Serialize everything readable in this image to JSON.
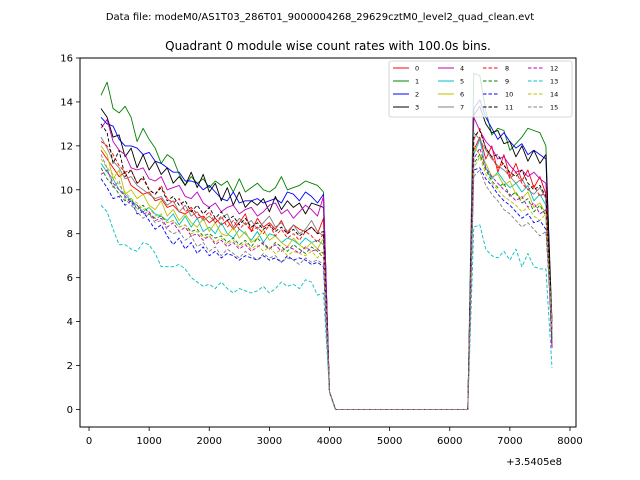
{
  "chart_data": {
    "type": "line",
    "suptitle": "Data file: modeM0/AS1T03_286T01_9000004268_29629cztM0_level2_quad_clean.evt",
    "title": "Quadrant 0 module wise count rates with 100.0s bins.",
    "xlabel": "",
    "ylabel": "",
    "x_offset_label": "+3.5405e8",
    "xlim": [
      -150,
      8100
    ],
    "ylim": [
      -0.8,
      16.0
    ],
    "xticks": [
      0,
      1000,
      2000,
      3000,
      4000,
      5000,
      6000,
      7000,
      8000
    ],
    "xtick_labels": [
      "0",
      "1000",
      "2000",
      "3000",
      "4000",
      "5000",
      "6000",
      "7000",
      "8000"
    ],
    "yticks": [
      0,
      2,
      4,
      6,
      8,
      10,
      12,
      14,
      16
    ],
    "ytick_labels": [
      "0",
      "2",
      "4",
      "6",
      "8",
      "10",
      "12",
      "14",
      "16"
    ],
    "grid": false,
    "legend_position": "top-right",
    "legend_columns": 4,
    "x": [
      200,
      300,
      400,
      500,
      600,
      700,
      800,
      900,
      1000,
      1100,
      1200,
      1300,
      1400,
      1500,
      1600,
      1700,
      1800,
      1900,
      2000,
      2100,
      2200,
      2300,
      2400,
      2500,
      2600,
      2700,
      2800,
      2900,
      3000,
      3100,
      3200,
      3300,
      3400,
      3500,
      3600,
      3700,
      3800,
      3900,
      4000,
      4100,
      4200,
      4300,
      4400,
      4500,
      4600,
      4700,
      4800,
      4900,
      5000,
      5100,
      5200,
      5300,
      5400,
      5500,
      5600,
      5700,
      5800,
      5900,
      6000,
      6100,
      6200,
      6300,
      6400,
      6500,
      6600,
      6700,
      6800,
      6900,
      7000,
      7100,
      7200,
      7300,
      7400,
      7500,
      7600,
      7700
    ],
    "series": [
      {
        "name": "0",
        "color": "#ff0000",
        "dash": "solid",
        "seg1": [
          11.8,
          11.4,
          11.0,
          10.6,
          10.8,
          10.2,
          10.0,
          9.8,
          9.9,
          9.5,
          9.6,
          9.2,
          9.3,
          9.0,
          8.9,
          9.1,
          8.7,
          8.8,
          8.5,
          8.7,
          8.4,
          8.6,
          8.2,
          8.5,
          8.9,
          8.1,
          8.7,
          8.3,
          8.5,
          8.2,
          8.6,
          8.0,
          8.4,
          8.2,
          8.1,
          8.3,
          8.0,
          8.7
        ],
        "seg2": [
          11.8,
          12.4,
          11.4,
          12.0,
          10.8,
          11.6,
          10.6,
          11.2,
          10.4,
          10.9,
          10.1,
          10.6,
          9.8,
          10.2,
          9.5
        ]
      },
      {
        "name": "1",
        "color": "#008000",
        "dash": "solid",
        "seg1": [
          14.3,
          14.9,
          13.7,
          13.5,
          13.8,
          13.3,
          12.2,
          12.8,
          12.3,
          11.9,
          11.2,
          11.6,
          11.4,
          10.7,
          10.2,
          10.6,
          10.3,
          10.5,
          10.1,
          10.4,
          10.2,
          10.4,
          9.9,
          10.5,
          9.9,
          10.1,
          10.3,
          10.0,
          9.9,
          10.1,
          10.6,
          10.0,
          10.1,
          10.2,
          10.4,
          10.3,
          10.2,
          9.9
        ],
        "seg2": [
          15.3,
          15.2,
          13.6,
          12.5,
          12.8,
          12.7,
          11.8,
          12.1,
          12.4,
          12.8,
          12.7,
          12.6,
          12.0,
          12.7,
          12.6
        ]
      },
      {
        "name": "2",
        "color": "#0000ff",
        "dash": "solid",
        "seg1": [
          13.3,
          13.0,
          12.9,
          12.3,
          12.0,
          12.0,
          11.9,
          11.6,
          11.7,
          11.3,
          11.2,
          11.0,
          10.8,
          10.8,
          10.4,
          10.4,
          10.3,
          10.0,
          10.2,
          9.9,
          9.6,
          9.5,
          9.9,
          9.4,
          9.5,
          9.5,
          9.6,
          9.4,
          9.5,
          9.6,
          9.4,
          9.9,
          9.8,
          9.5,
          9.9,
          9.7,
          9.4,
          9.8
        ],
        "seg2": [
          13.7,
          14.1,
          13.3,
          12.8,
          12.3,
          12.6,
          12.2,
          11.9,
          12.1,
          11.6,
          11.8,
          11.6,
          11.4,
          11.2,
          11.6
        ]
      },
      {
        "name": "3",
        "color": "#000000",
        "dash": "solid",
        "seg1": [
          13.7,
          13.3,
          12.4,
          12.5,
          11.5,
          11.9,
          11.0,
          11.6,
          10.9,
          11.3,
          10.7,
          11.0,
          10.3,
          10.6,
          10.2,
          10.8,
          10.1,
          10.7,
          9.9,
          10.3,
          9.5,
          10.1,
          9.3,
          9.9,
          9.2,
          9.5,
          9.3,
          9.6,
          9.0,
          9.7,
          9.1,
          9.5,
          9.2,
          9.4,
          8.9,
          9.4,
          9.3,
          9.2
        ],
        "seg2": [
          13.4,
          13.8,
          13.0,
          12.6,
          12.7,
          12.1,
          12.2,
          11.5,
          12.0,
          11.3,
          11.8,
          11.2,
          11.6,
          11.0,
          10.6
        ]
      },
      {
        "name": "4",
        "color": "#bf00bf",
        "dash": "solid",
        "seg1": [
          12.8,
          13.2,
          12.2,
          11.8,
          11.6,
          11.0,
          10.9,
          11.0,
          10.5,
          10.4,
          10.6,
          10.0,
          10.1,
          10.2,
          9.7,
          9.6,
          9.9,
          9.4,
          9.2,
          9.4,
          9.0,
          9.2,
          9.3,
          8.9,
          9.1,
          9.2,
          8.8,
          9.0,
          9.3,
          9.4,
          8.9,
          9.1,
          8.7,
          9.0,
          9.3,
          9.1,
          8.8,
          9.7
        ],
        "seg2": [
          13.3,
          12.7,
          12.2,
          11.9,
          11.4,
          11.5,
          11.1,
          10.8,
          10.9,
          10.6,
          10.8,
          10.5,
          10.3,
          10.5,
          10.4
        ]
      },
      {
        "name": "5",
        "color": "#00bfbf",
        "dash": "solid",
        "seg1": [
          11.2,
          10.8,
          10.5,
          10.0,
          9.8,
          9.5,
          9.3,
          9.0,
          9.2,
          8.9,
          8.8,
          8.6,
          8.9,
          8.4,
          8.8,
          8.3,
          8.7,
          8.1,
          8.3,
          8.0,
          8.5,
          8.0,
          7.8,
          8.2,
          8.0,
          7.7,
          8.1,
          7.6,
          8.0,
          7.9,
          7.6,
          7.8,
          7.7,
          7.5,
          7.8,
          7.6,
          7.7,
          7.5
        ],
        "seg2": [
          11.6,
          12.3,
          11.0,
          10.5,
          10.8,
          10.4,
          10.1,
          10.3,
          9.9,
          10.2,
          9.5,
          9.8,
          9.3,
          9.6,
          9.7
        ]
      },
      {
        "name": "6",
        "color": "#bfbf00",
        "dash": "solid",
        "seg1": [
          12.0,
          11.6,
          10.5,
          10.9,
          9.8,
          10.0,
          9.6,
          9.8,
          9.3,
          9.1,
          9.5,
          8.8,
          9.1,
          8.6,
          8.9,
          8.5,
          8.3,
          8.7,
          8.1,
          8.5,
          8.0,
          7.9,
          8.3,
          7.8,
          8.1,
          7.6,
          7.8,
          8.2,
          7.7,
          7.9,
          7.6,
          7.4,
          7.8,
          7.5,
          7.3,
          7.6,
          7.3,
          7.8
        ],
        "seg2": [
          12.0,
          11.6,
          11.2,
          10.6,
          10.7,
          10.2,
          10.4,
          9.8,
          9.6,
          9.9,
          9.2,
          9.4,
          8.9,
          9.1,
          8.6
        ]
      },
      {
        "name": "7",
        "color": "#808080",
        "dash": "solid",
        "seg1": [
          12.4,
          11.9,
          11.3,
          11.0,
          10.5,
          10.6,
          10.2,
          10.0,
          9.8,
          9.6,
          9.7,
          9.3,
          9.5,
          9.0,
          9.3,
          8.8,
          9.0,
          8.6,
          8.8,
          8.5,
          8.7,
          8.9,
          8.3,
          8.7,
          8.4,
          8.6,
          8.2,
          8.5,
          8.8,
          8.3,
          8.5,
          8.1,
          8.4,
          8.0,
          8.2,
          8.6,
          8.1,
          7.9
        ],
        "seg2": [
          12.6,
          12.3,
          11.8,
          11.4,
          11.1,
          10.9,
          10.6,
          10.3,
          10.5,
          10.0,
          9.8,
          10.1,
          9.6,
          9.9,
          9.4
        ]
      },
      {
        "name": "8",
        "color": "#ff0000",
        "dash": "dashed",
        "seg1": [
          12.2,
          12.0,
          11.6,
          11.1,
          10.8,
          10.9,
          10.3,
          10.5,
          10.0,
          9.8,
          10.2,
          9.6,
          9.4,
          9.6,
          9.0,
          9.2,
          8.9,
          8.7,
          9.0,
          8.5,
          8.8,
          8.3,
          8.6,
          8.2,
          8.5,
          8.1,
          8.3,
          8.0,
          8.4,
          7.9,
          8.2,
          7.8,
          8.0,
          7.7,
          8.1,
          7.9,
          7.6,
          8.0
        ],
        "seg2": [
          12.3,
          12.8,
          11.9,
          11.5,
          11.0,
          11.2,
          10.5,
          10.8,
          10.3,
          10.0,
          10.2,
          9.7,
          9.9,
          9.4,
          9.2
        ]
      },
      {
        "name": "9",
        "color": "#008000",
        "dash": "dashed",
        "seg1": [
          11.0,
          10.5,
          10.2,
          9.8,
          9.5,
          9.6,
          9.1,
          9.3,
          8.9,
          8.7,
          8.8,
          8.5,
          8.6,
          8.3,
          8.4,
          8.1,
          8.2,
          7.9,
          8.0,
          7.8,
          7.9,
          7.6,
          7.8,
          7.5,
          7.7,
          7.4,
          7.8,
          7.5,
          7.3,
          7.6,
          7.4,
          7.2,
          7.5,
          7.3,
          7.1,
          7.4,
          7.2,
          6.9
        ],
        "seg2": [
          11.2,
          11.6,
          10.9,
          10.4,
          10.1,
          10.3,
          9.7,
          9.9,
          9.4,
          9.6,
          9.0,
          9.3,
          8.8,
          9.0,
          8.7
        ]
      },
      {
        "name": "10",
        "color": "#0000ff",
        "dash": "dashed",
        "seg1": [
          10.5,
          10.1,
          9.6,
          9.7,
          9.3,
          9.5,
          8.9,
          9.0,
          8.6,
          8.2,
          8.4,
          7.9,
          7.5,
          7.8,
          7.3,
          7.6,
          7.1,
          7.4,
          7.0,
          7.2,
          6.9,
          7.1,
          7.0,
          6.8,
          7.0,
          6.9,
          6.8,
          7.0,
          6.8,
          6.9,
          6.7,
          7.0,
          6.8,
          6.9,
          6.8,
          6.6,
          6.7,
          6.5
        ],
        "seg2": [
          10.9,
          11.0,
          10.5,
          10.2,
          9.8,
          9.5,
          9.3,
          9.0,
          8.7,
          8.9,
          8.5,
          8.6,
          8.2,
          8.0,
          8.3
        ]
      },
      {
        "name": "11",
        "color": "#000000",
        "dash": "dashed",
        "seg1": [
          13.0,
          12.6,
          11.2,
          11.8,
          10.6,
          10.9,
          10.3,
          10.6,
          10.0,
          9.8,
          10.1,
          9.5,
          9.7,
          9.3,
          9.5,
          9.0,
          9.3,
          8.9,
          9.2,
          8.7,
          9.0,
          8.6,
          8.8,
          8.4,
          8.7,
          8.3,
          8.5,
          8.2,
          8.4,
          8.1,
          8.3,
          8.0,
          8.2,
          7.9,
          8.1,
          8.3,
          8.0,
          8.1
        ],
        "seg2": [
          12.4,
          12.7,
          11.9,
          11.5,
          11.6,
          11.1,
          10.8,
          10.6,
          10.9,
          10.3,
          10.0,
          10.2,
          9.7,
          9.4,
          9.0
        ]
      },
      {
        "name": "12",
        "color": "#bf00bf",
        "dash": "dashed",
        "seg1": [
          10.7,
          10.9,
          10.3,
          10.0,
          9.7,
          9.4,
          9.3,
          8.9,
          9.0,
          8.6,
          8.7,
          8.3,
          8.5,
          8.1,
          8.3,
          7.9,
          8.0,
          7.7,
          7.9,
          7.5,
          7.7,
          7.4,
          7.6,
          7.3,
          7.5,
          7.2,
          7.4,
          7.6,
          7.3,
          7.5,
          7.2,
          7.4,
          7.3,
          7.1,
          7.4,
          7.2,
          7.3,
          7.1
        ],
        "seg2": [
          11.4,
          11.9,
          11.0,
          10.6,
          10.3,
          10.0,
          9.8,
          9.5,
          9.7,
          9.2,
          9.4,
          8.9,
          9.1,
          8.7,
          8.8
        ]
      },
      {
        "name": "13",
        "color": "#00bfbf",
        "dash": "dashed",
        "seg1": [
          9.3,
          9.0,
          8.2,
          7.5,
          7.5,
          7.3,
          7.2,
          7.6,
          7.5,
          7.1,
          6.5,
          6.5,
          6.5,
          6.6,
          6.4,
          6.0,
          5.8,
          5.6,
          5.7,
          5.5,
          5.8,
          5.5,
          5.3,
          5.5,
          5.4,
          5.3,
          5.4,
          5.6,
          5.3,
          5.5,
          5.8,
          5.6,
          5.7,
          5.5,
          5.9,
          5.8,
          5.2,
          5.3
        ],
        "seg2": [
          8.3,
          8.4,
          7.3,
          7.0,
          6.9,
          7.2,
          6.8,
          7.3,
          6.5,
          7.1,
          6.5,
          6.4,
          6.4,
          6.3,
          1.9
        ]
      },
      {
        "name": "14",
        "color": "#bfbf00",
        "dash": "dashed",
        "seg1": [
          11.4,
          11.0,
          10.7,
          10.2,
          9.9,
          9.6,
          9.4,
          9.1,
          9.2,
          8.8,
          8.9,
          8.5,
          8.6,
          8.3,
          8.4,
          8.0,
          8.1,
          7.8,
          7.9,
          7.6,
          7.8,
          7.5,
          7.7,
          7.4,
          7.6,
          7.3,
          7.5,
          7.2,
          7.4,
          7.1,
          7.3,
          7.0,
          7.2,
          7.1,
          7.0,
          7.2,
          6.9,
          7.3
        ],
        "seg2": [
          11.0,
          11.5,
          10.7,
          10.3,
          10.0,
          9.7,
          9.5,
          9.3,
          9.0,
          9.2,
          8.8,
          8.6,
          8.9,
          8.5,
          8.4
        ]
      },
      {
        "name": "15",
        "color": "#808080",
        "dash": "dashed",
        "seg1": [
          11.6,
          11.0,
          10.1,
          10.4,
          9.6,
          9.3,
          9.0,
          8.7,
          8.9,
          8.5,
          8.6,
          8.2,
          8.0,
          8.1,
          7.7,
          7.9,
          7.4,
          7.6,
          7.2,
          7.4,
          7.0,
          7.3,
          7.1,
          6.9,
          7.2,
          7.0,
          6.8,
          7.1,
          6.9,
          7.0,
          6.7,
          6.9,
          6.8,
          6.6,
          6.9,
          6.7,
          6.8,
          6.6
        ],
        "seg2": [
          10.6,
          10.9,
          10.2,
          9.8,
          9.5,
          9.1,
          8.9,
          8.6,
          8.3,
          8.5,
          8.2,
          7.9,
          8.1,
          7.8,
          8.0
        ]
      }
    ],
    "gap_values": {
      "x4000": 0.8,
      "x4100_to_6300": 0.0
    },
    "last_point_x7700": 2.8
  }
}
